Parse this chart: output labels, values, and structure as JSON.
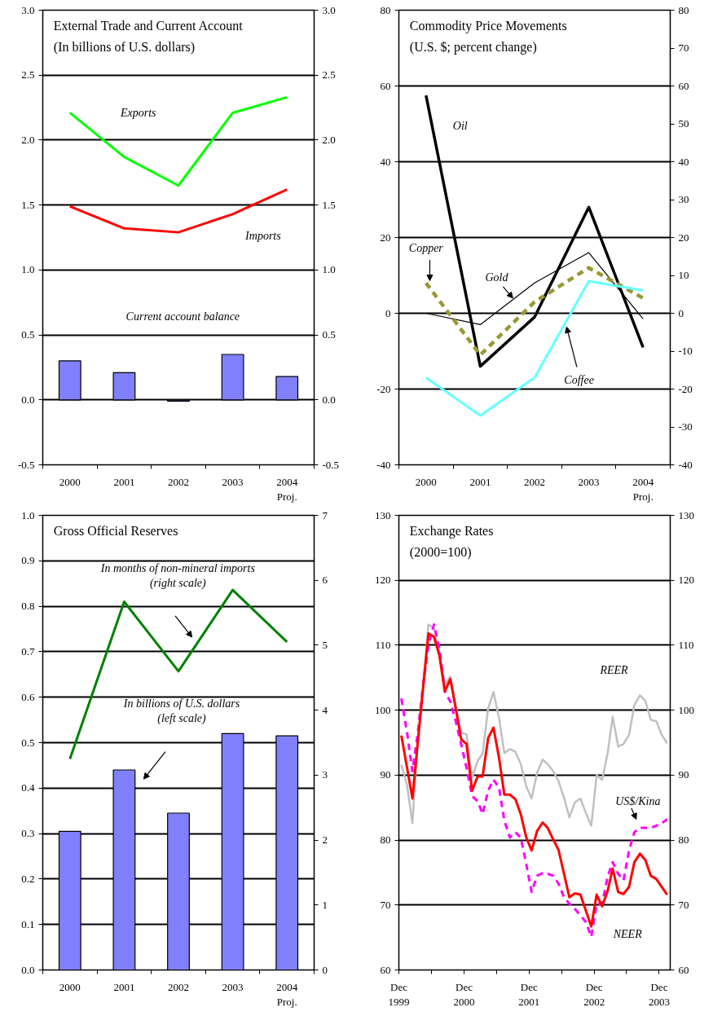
{
  "chart_data": [
    {
      "type": "line",
      "title": "External Trade and Current Account",
      "subtitle": "(In billions of U.S. dollars)",
      "categories": [
        "2000",
        "2001",
        "2002",
        "2003",
        "2004\nProj."
      ],
      "series": [
        {
          "name": "Exports",
          "type": "line",
          "color": "#00ff00",
          "values": [
            2.21,
            1.87,
            1.65,
            2.21,
            2.33
          ]
        },
        {
          "name": "Imports",
          "type": "line",
          "color": "#ff0000",
          "values": [
            1.49,
            1.32,
            1.29,
            1.43,
            1.62
          ]
        },
        {
          "name": "Current account balance",
          "type": "bar",
          "color": "#8080ff",
          "values": [
            0.3,
            0.21,
            -0.01,
            0.35,
            0.18
          ]
        }
      ],
      "ylim": [
        -0.5,
        3
      ],
      "yticks": [
        -0.5,
        {
          "value": 0,
          "label": "0.0"
        },
        0.5,
        {
          "value": 1,
          "label": "1.0"
        },
        1.5,
        {
          "value": 2,
          "label": "2.0"
        },
        2.5,
        {
          "value": 3,
          "label": "3.0"
        }
      ],
      "y2lim": [
        -0.5,
        3
      ],
      "y2ticks": [
        -0.5,
        {
          "value": 0,
          "label": "0.0"
        },
        0.5,
        {
          "value": 1,
          "label": "1.0"
        },
        1.5,
        {
          "value": 2,
          "label": "2.0"
        },
        2.5,
        {
          "value": 3,
          "label": "3.0"
        }
      ],
      "grid": "y"
    },
    {
      "type": "line",
      "title": "Commodity Price Movements",
      "subtitle": "(U.S. $; percent change)",
      "categories": [
        "2000",
        "2001",
        "2002",
        "2003",
        "2004\nProj."
      ],
      "series": [
        {
          "name": "Oil",
          "color": "#000000",
          "values": [
            57.5,
            -14,
            -1,
            28,
            -9
          ]
        },
        {
          "name": "Gold",
          "color": "#000000",
          "values": [
            0,
            -3,
            8,
            16,
            -1.5
          ]
        },
        {
          "name": "Copper",
          "color": "#999933",
          "line_style": "dashed",
          "values": [
            8,
            -11,
            3,
            12,
            4
          ]
        },
        {
          "name": "Coffee",
          "color": "#66ffff",
          "values": [
            -17,
            -27,
            -17,
            8.5,
            6
          ]
        }
      ],
      "ylim": [
        -40,
        80
      ],
      "yticks": [
        -40,
        -20,
        0,
        20,
        40,
        60,
        80
      ],
      "y2lim": [
        -40,
        80
      ],
      "y2ticks": [
        -40,
        -30,
        -20,
        -10,
        0,
        10,
        20,
        30,
        40,
        50,
        60,
        70,
        80
      ],
      "grid": "y"
    },
    {
      "type": "bar",
      "title": "Gross Official Reserves",
      "categories": [
        "2000",
        "2001",
        "2002",
        "2003",
        "2004\nProj."
      ],
      "series": [
        {
          "name": "In billions of U.S. dollars\n(left scale)",
          "type": "bar",
          "color": "#8080ff",
          "values": [
            0.305,
            0.44,
            0.345,
            0.52,
            0.515
          ]
        },
        {
          "name": "In months of non-mineral imports\n(right scale)",
          "type": "line",
          "axis": "y2",
          "color": "#008000",
          "values": [
            3.25,
            5.67,
            4.6,
            5.85,
            5.05
          ]
        }
      ],
      "ylim": [
        0,
        1
      ],
      "yticks": [
        {
          "value": 0,
          "label": "0.0"
        },
        0.1,
        0.2,
        0.3,
        0.4,
        0.5,
        0.6,
        0.7,
        0.8,
        0.9,
        {
          "value": 1,
          "label": "1.0"
        }
      ],
      "y2lim": [
        0,
        7
      ],
      "y2ticks": [
        0,
        1,
        2,
        3,
        4,
        5,
        6,
        7
      ],
      "grid": "y"
    },
    {
      "type": "line",
      "title": "Exchange Rates",
      "subtitle": "(2000=100)",
      "x": [
        "1999-12-15",
        "2000-01-15",
        "2000-02-15",
        "2000-03-15",
        "2000-04-15",
        "2000-05-15",
        "2000-06-15",
        "2000-07-15",
        "2000-08-15",
        "2000-09-15",
        "2000-10-15",
        "2000-11-15",
        "2000-12-15",
        "2001-01-15",
        "2001-02-15",
        "2001-03-15",
        "2001-04-15",
        "2001-05-15",
        "2001-06-15",
        "2001-07-15",
        "2001-08-15",
        "2001-09-15",
        "2001-10-15",
        "2001-11-15",
        "2001-12-15",
        "2002-01-15",
        "2002-02-15",
        "2002-03-15",
        "2002-04-15",
        "2002-05-15",
        "2002-06-15",
        "2002-07-15",
        "2002-08-15",
        "2002-09-15",
        "2002-10-15",
        "2002-11-15",
        "2002-12-15",
        "2003-01-15",
        "2003-02-15",
        "2003-03-15",
        "2003-04-15",
        "2003-05-15",
        "2003-06-15",
        "2003-07-15",
        "2003-08-15",
        "2003-09-15",
        "2003-10-15",
        "2003-11-15",
        "2003-12-15",
        "2004-01-15"
      ],
      "series": [
        {
          "name": "REER",
          "color": "#c0c0c0",
          "values": [
            91.6,
            88.6,
            82.6,
            94.7,
            103.9,
            113.2,
            112.6,
            109.0,
            103.9,
            105.2,
            100.8,
            96.5,
            96.3,
            89.6,
            92.2,
            93.3,
            100.3,
            102.8,
            98.8,
            93.4,
            94.0,
            93.6,
            91.7,
            88.3,
            86.4,
            90.4,
            92.4,
            91.7,
            90.6,
            89.1,
            86.5,
            83.5,
            85.8,
            86.4,
            84.2,
            82.2,
            90.0,
            89.3,
            93.4,
            99.0,
            94.4,
            94.8,
            96.2,
            100.8,
            102.3,
            101.4,
            98.5,
            98.3,
            96.2,
            94.9
          ]
        },
        {
          "name": "US$/Kina",
          "color": "#ff00ff",
          "line_style": "dashed",
          "values": [
            101.8,
            96.7,
            90.6,
            96.2,
            103.9,
            110.0,
            113.2,
            109.5,
            102.9,
            101.3,
            98.3,
            94.7,
            91.1,
            86.8,
            86.0,
            84.0,
            87.6,
            89.3,
            88.1,
            83.0,
            80.4,
            81.2,
            80.4,
            76.3,
            72.0,
            74.5,
            74.9,
            74.8,
            74.5,
            73.3,
            71.2,
            70.2,
            69.4,
            68.4,
            67.4,
            65.1,
            70.2,
            70.2,
            74.4,
            76.6,
            74.8,
            73.8,
            78.4,
            81.2,
            81.9,
            81.9,
            81.9,
            82.2,
            82.6,
            83.2
          ]
        },
        {
          "name": "NEER",
          "color": "#ff0000",
          "values": [
            96.1,
            91.3,
            86.4,
            94.7,
            103.4,
            111.8,
            111.3,
            108.5,
            102.9,
            104.8,
            100.3,
            95.5,
            94.8,
            87.6,
            89.8,
            89.8,
            95.7,
            97.3,
            92.7,
            87.0,
            87.0,
            86.3,
            84.0,
            80.4,
            78.4,
            81.4,
            82.7,
            81.9,
            80.1,
            78.5,
            74.8,
            71.2,
            71.8,
            71.6,
            69.2,
            66.7,
            71.6,
            69.8,
            72.2,
            75.6,
            72.0,
            71.7,
            72.8,
            76.6,
            77.9,
            76.9,
            74.5,
            74.0,
            72.8,
            71.6
          ]
        }
      ],
      "xlim": [
        "1999-12-01",
        "2004-02-01"
      ],
      "xticks": [
        {
          "value": "1999-12-01",
          "label": "Dec\n1999"
        },
        {
          "value": "2000-06-01",
          "label": null
        },
        {
          "value": "2000-12-01",
          "label": "Dec\n2000"
        },
        {
          "value": "2001-06-01",
          "label": null
        },
        {
          "value": "2001-12-01",
          "label": "Dec\n2001"
        },
        {
          "value": "2002-06-01",
          "label": null
        },
        {
          "value": "2002-12-01",
          "label": "Dec\n2002"
        },
        {
          "value": "2003-06-01",
          "label": null
        },
        {
          "value": "2003-12-01",
          "label": "Dec\n2003"
        }
      ],
      "ylim": [
        60,
        130
      ],
      "yticks": [
        60,
        70,
        80,
        90,
        100,
        110,
        120,
        130
      ],
      "y2lim": [
        60,
        130
      ],
      "y2ticks": [
        60,
        70,
        80,
        90,
        100,
        110,
        120,
        130
      ],
      "grid": "y"
    }
  ]
}
